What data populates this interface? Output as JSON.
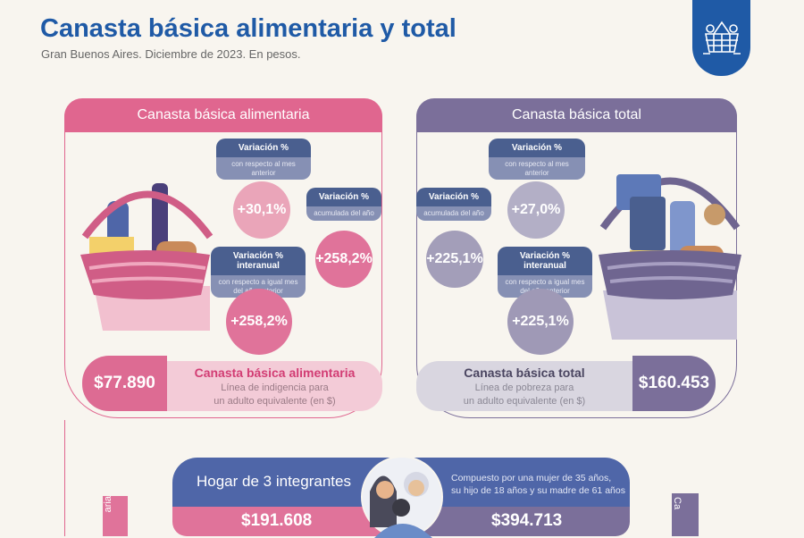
{
  "header": {
    "title": "Canasta básica alimentaria y total",
    "subtitle": "Gran Buenos Aires. Diciembre de 2023. En pesos."
  },
  "logo": {
    "icon": "shopping-basket-icon"
  },
  "colors": {
    "title": "#1f5aa6",
    "alimentaria": "#e0668f",
    "total": "#7b6f9a",
    "bubble": "#4a5f8f"
  },
  "alimentaria": {
    "title": "Canasta básica alimentaria",
    "mensual": {
      "label": "Variación %",
      "sub": "con respecto al mes anterior",
      "value": "+30,1%"
    },
    "acumulada": {
      "label": "Variación %",
      "sub": "acumulada del año",
      "value": "+258,2%"
    },
    "interanual": {
      "label": "Variación % interanual",
      "sub": "con respecto a igual mes del año anterior",
      "value": "+258,2%"
    },
    "price": "$77.890",
    "price_title": "Canasta básica alimentaria",
    "price_line1": "Línea de indigencia para",
    "price_line2": "un adulto equivalente (en $)",
    "vertical": "aria"
  },
  "total": {
    "title": "Canasta básica total",
    "mensual": {
      "label": "Variación %",
      "sub": "con respecto al mes anterior",
      "value": "+27,0%"
    },
    "acumulada": {
      "label": "Variación %",
      "sub": "acumulada del año",
      "value": "+225,1%"
    },
    "interanual": {
      "label": "Variación % interanual",
      "sub": "con respecto a igual mes del año anterior",
      "value": "+225,1%"
    },
    "price": "$160.453",
    "price_title": "Canasta básica total",
    "price_line1": "Línea de pobreza para",
    "price_line2": "un adulto equivalente (en $)",
    "vertical": "Ca"
  },
  "hogar": {
    "title": "Hogar de 3 integrantes",
    "desc_line1": "Compuesto por una mujer de 35 años,",
    "desc_line2": "su hijo de 18 años y su madre de 61 años",
    "alimentaria": "$191.608",
    "total": "$394.713"
  }
}
